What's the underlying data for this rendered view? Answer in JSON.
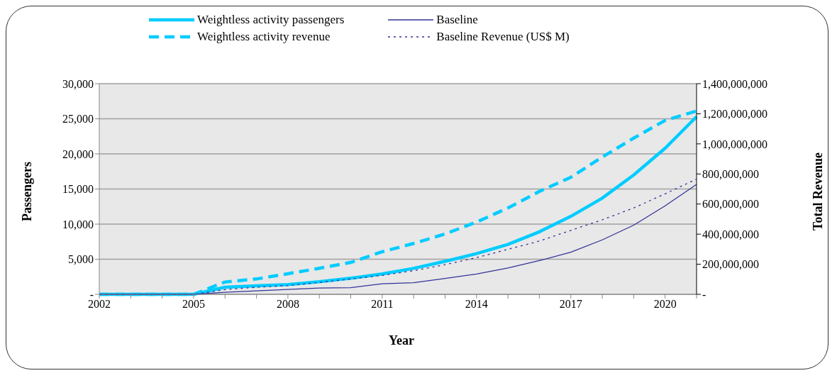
{
  "chart_data": {
    "type": "line",
    "xlabel": "Year",
    "ylabel": "Passengers",
    "y2label": "Total Revenue",
    "x": [
      2002,
      2003,
      2004,
      2005,
      2006,
      2007,
      2008,
      2009,
      2010,
      2011,
      2012,
      2013,
      2014,
      2015,
      2016,
      2017,
      2018,
      2019,
      2020,
      2021
    ],
    "series": [
      {
        "name": "Weightless activity passengers",
        "color": "#00ccff",
        "line_style": "solid",
        "values": [
          0,
          0,
          0,
          0,
          1000,
          1200,
          1400,
          1800,
          2300,
          2900,
          3700,
          4700,
          5800,
          7100,
          8900,
          11100,
          13700,
          17000,
          20800,
          25300
        ]
      },
      {
        "name": "Weightless activity revenue",
        "color": "#00ccff",
        "line_style": "dashed",
        "axis": "y2",
        "values": [
          0,
          0,
          0,
          0,
          82000000,
          102000000,
          137000000,
          173000000,
          212000000,
          283000000,
          338000000,
          401000000,
          480000000,
          574000000,
          684000000,
          778000000,
          912000000,
          1038000000,
          1156000000,
          1218000000
        ]
      },
      {
        "name": "Baseline",
        "color": "#333399",
        "line_style": "solid",
        "values": [
          0,
          0,
          0,
          0,
          300,
          500,
          700,
          900,
          950,
          1500,
          1650,
          2250,
          2900,
          3750,
          4800,
          6000,
          7750,
          9850,
          12600,
          15650
        ]
      },
      {
        "name": "Baseline Revenue (US$ M)",
        "color": "#333399",
        "line_style": "dotted",
        "axis": "y2",
        "values": [
          0,
          0,
          0,
          0,
          31000000,
          47000000,
          58000000,
          79000000,
          102000000,
          126000000,
          157000000,
          197000000,
          244000000,
          299000000,
          354000000,
          425000000,
          495000000,
          574000000,
          668000000,
          766000000
        ]
      }
    ],
    "xlim": [
      2002,
      2021
    ],
    "xticks": [
      2002,
      {
        "value": 2003,
        "label": null
      },
      {
        "value": 2004,
        "label": null
      },
      2005,
      {
        "value": 2006,
        "label": null
      },
      {
        "value": 2007,
        "label": null
      },
      2008,
      {
        "value": 2009,
        "label": null
      },
      {
        "value": 2010,
        "label": null
      },
      2011,
      {
        "value": 2012,
        "label": null
      },
      {
        "value": 2013,
        "label": null
      },
      2014,
      {
        "value": 2015,
        "label": null
      },
      {
        "value": 2016,
        "label": null
      },
      2017,
      {
        "value": 2018,
        "label": null
      },
      {
        "value": 2019,
        "label": null
      },
      2020,
      {
        "value": 2021,
        "label": null
      }
    ],
    "ylim": [
      0,
      30000
    ],
    "yticks": [
      {
        "value": 0,
        "label": "-"
      },
      {
        "value": 5000,
        "label": "5,000"
      },
      {
        "value": 10000,
        "label": "10,000"
      },
      {
        "value": 15000,
        "label": "15,000"
      },
      {
        "value": 20000,
        "label": "20,000"
      },
      {
        "value": 25000,
        "label": "25,000"
      },
      {
        "value": 30000,
        "label": "30,000"
      }
    ],
    "y2lim": [
      0,
      1400000000
    ],
    "y2ticks": [
      {
        "value": 0,
        "label": "-"
      },
      {
        "value": 200000000,
        "label": "200,000,000"
      },
      {
        "value": 400000000,
        "label": "400,000,000"
      },
      {
        "value": 600000000,
        "label": "600,000,000"
      },
      {
        "value": 800000000,
        "label": "800,000,000"
      },
      {
        "value": 1000000000,
        "label": "1,000,000,000"
      },
      {
        "value": 1200000000,
        "label": "1,200,000,000"
      },
      {
        "value": 1400000000,
        "label": "1,400,000,000"
      }
    ],
    "grid": "y",
    "legend": "top"
  }
}
